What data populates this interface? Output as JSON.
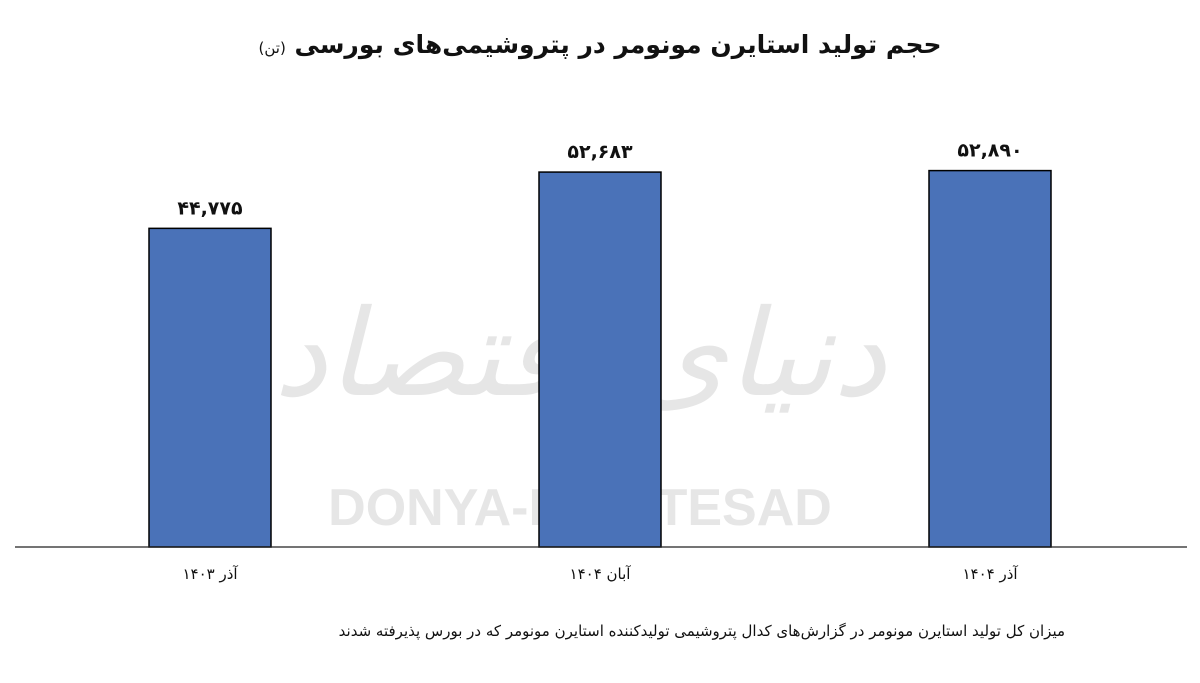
{
  "chart_data": {
    "type": "bar",
    "title": "حجم تولید استایرن مونومر در پتروشیمی‌های بورسی",
    "title_unit": "(تن)",
    "categories": [
      "آذر ۱۴۰۳",
      "آبان ۱۴۰۴",
      "آذر ۱۴۰۴"
    ],
    "values": [
      44775,
      52683,
      52890
    ],
    "value_labels": [
      "۴۴,۷۷۵",
      "۵۲,۶۸۳",
      "۵۲,۸۹۰"
    ],
    "ylim": [
      0,
      60000
    ],
    "grid": false,
    "legend": "none",
    "bar_color": "#4a72b8",
    "bar_outline": "#000000"
  },
  "watermark": {
    "text_fa": "دنیای اقتصاد",
    "text_en": "DONYA-E-EQTESAD",
    "color": "#e6e6e6"
  },
  "footnote": "میزان کل تولید استایرن مونومر در گزارش‌های کدال پتروشیمی تولیدکننده استایرن مونومر که در بورس پذیرفته شدند"
}
